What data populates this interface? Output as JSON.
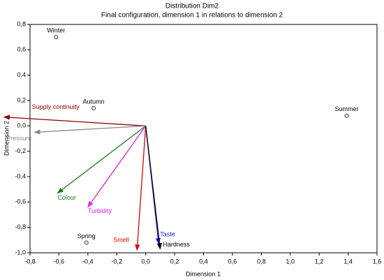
{
  "chart_data": {
    "type": "scatter",
    "title": "Distribution Dim2",
    "subtitle": "Final configuration, dimension 1 in relations to dimension 2",
    "xlabel": "Dimension 1",
    "ylabel": "Dimension 2",
    "point_labels": [
      "Winter",
      "Autumn",
      "Summer",
      "Spring"
    ],
    "x": [
      -0.62,
      -0.36,
      1.39,
      -0.41
    ],
    "values": [
      0.7,
      0.14,
      0.08,
      -0.92
    ],
    "color": "#333333",
    "vectors": [
      {
        "name": "Supply continuity",
        "color": "#8b0000",
        "x": -0.98,
        "y": 0.07
      },
      {
        "name": "Pressure",
        "color": "#8c8c8c",
        "x": -0.77,
        "y": -0.05
      },
      {
        "name": "Colour",
        "color": "#1a7a1a",
        "x": -0.61,
        "y": -0.53
      },
      {
        "name": "Turbidity",
        "color": "#e020e0",
        "x": -0.4,
        "y": -0.64
      },
      {
        "name": "Smell",
        "color": "#dd0000",
        "x": -0.06,
        "y": -0.98
      },
      {
        "name": "Taste",
        "color": "#1a1aee",
        "x": 0.09,
        "y": -0.93
      },
      {
        "name": "Hardness",
        "color": "#000000",
        "x": 0.1,
        "y": -0.97
      }
    ],
    "xlim": [
      -0.8,
      1.6
    ],
    "ylim": [
      -1.0,
      0.8
    ],
    "xticks": [
      {
        "value": -0.8,
        "label": "-0,8"
      },
      {
        "value": -0.6,
        "label": "-0,6"
      },
      {
        "value": -0.4,
        "label": "-0,4"
      },
      {
        "value": -0.2,
        "label": "-0,2"
      },
      {
        "value": 0.0,
        "label": "0,0"
      },
      {
        "value": 0.2,
        "label": "0,2"
      },
      {
        "value": 0.4,
        "label": "0,4"
      },
      {
        "value": 0.6,
        "label": "0,6"
      },
      {
        "value": 0.8,
        "label": "0,8"
      },
      {
        "value": 1.0,
        "label": "1,0"
      },
      {
        "value": 1.2,
        "label": "1,2"
      },
      {
        "value": 1.4,
        "label": "1,4"
      },
      {
        "value": 1.6,
        "label": "1,6"
      }
    ],
    "yticks": [
      {
        "value": -1.0,
        "label": "-1,0"
      },
      {
        "value": -0.8,
        "label": "-0,8"
      },
      {
        "value": -0.6,
        "label": "-0,6"
      },
      {
        "value": -0.4,
        "label": "-0,4"
      },
      {
        "value": -0.2,
        "label": "-0,2"
      },
      {
        "value": 0.0,
        "label": "0,0"
      },
      {
        "value": 0.2,
        "label": "0,2"
      },
      {
        "value": 0.4,
        "label": "0,4"
      },
      {
        "value": 0.6,
        "label": "0,6"
      },
      {
        "value": 0.8,
        "label": "0,8"
      }
    ],
    "grid": false
  }
}
